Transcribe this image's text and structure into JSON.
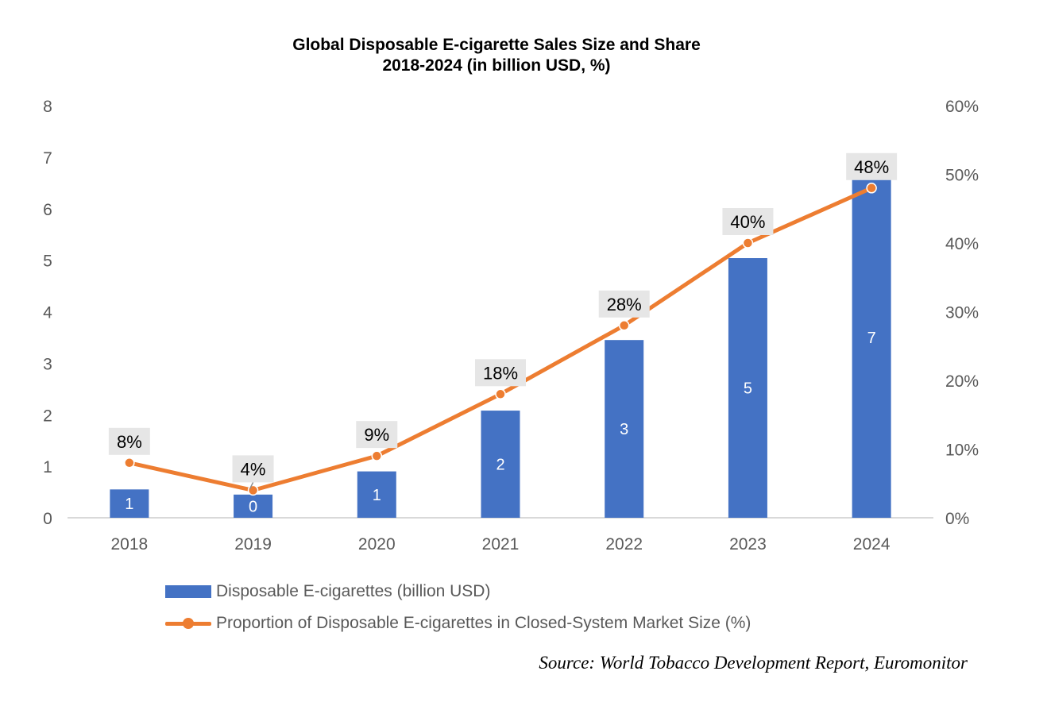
{
  "chart_data": {
    "type": "bar+line",
    "title": "Global Disposable E-cigarette Sales Size and Share",
    "subtitle": "2018-2024 (in billion USD, %)",
    "categories": [
      "2018",
      "2019",
      "2020",
      "2021",
      "2022",
      "2023",
      "2024"
    ],
    "series": [
      {
        "name": "Disposable E-cigarettes (billion USD)",
        "type": "bar",
        "axis": "left",
        "color": "#4472C4",
        "values": [
          0.55,
          0.45,
          0.9,
          2.08,
          3.45,
          5.04,
          7.0
        ],
        "data_labels": [
          "1",
          "0",
          "1",
          "2",
          "3",
          "5",
          "7"
        ]
      },
      {
        "name": "Proportion of Disposable E-cigarettes in Closed-System Market Size (%)",
        "type": "line",
        "axis": "right",
        "color": "#ED7D31",
        "values": [
          8,
          4,
          9,
          18,
          28,
          40,
          48
        ],
        "data_labels": [
          "8%",
          "4%",
          "9%",
          "18%",
          "28%",
          "40%",
          "48%"
        ]
      }
    ],
    "y_left": {
      "label": "",
      "range": [
        0,
        8
      ],
      "ticks": [
        "0",
        "1",
        "2",
        "3",
        "4",
        "5",
        "6",
        "7",
        "8"
      ]
    },
    "y_right": {
      "label": "",
      "range": [
        0,
        60
      ],
      "ticks": [
        "0%",
        "10%",
        "20%",
        "30%",
        "40%",
        "50%",
        "60%"
      ]
    },
    "xlabel": "",
    "grid": false,
    "legend_position": "bottom"
  },
  "source": {
    "prefix": "Source",
    "text": ": World Tobacco Development Report, Euromonitor"
  }
}
